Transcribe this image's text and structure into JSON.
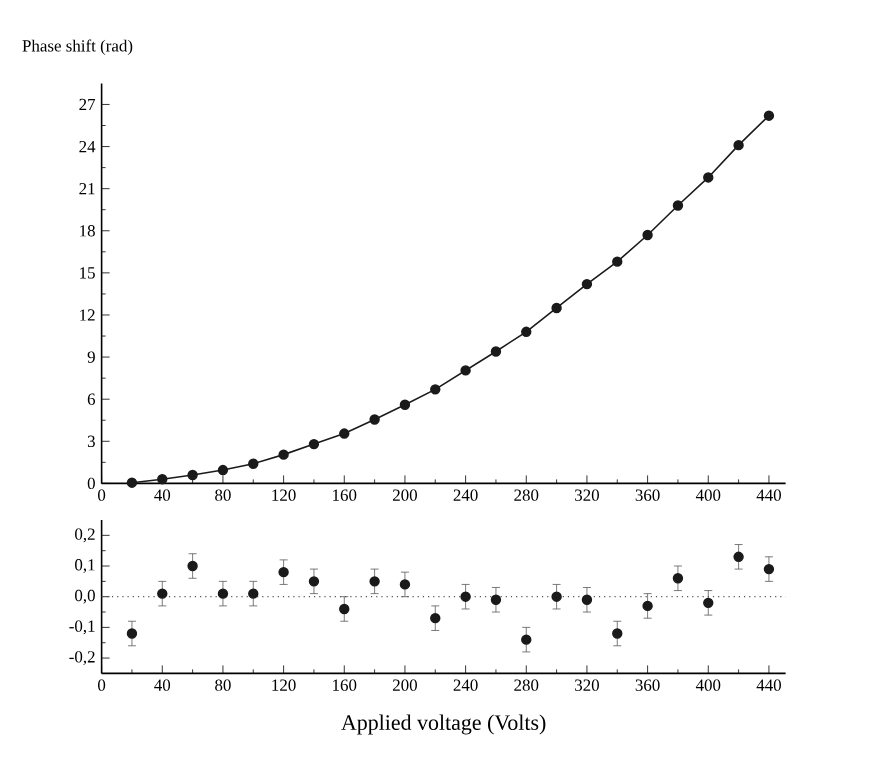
{
  "chart_data": [
    {
      "type": "line",
      "ylabel": "Phase shift (rad)",
      "x": [
        20,
        40,
        60,
        80,
        100,
        120,
        140,
        160,
        180,
        200,
        220,
        240,
        260,
        280,
        300,
        320,
        340,
        360,
        380,
        400,
        420,
        440
      ],
      "values": [
        0.05,
        0.3,
        0.6,
        0.95,
        1.4,
        2.05,
        2.8,
        3.55,
        4.55,
        5.6,
        6.7,
        8.05,
        9.4,
        10.8,
        12.5,
        14.2,
        15.8,
        17.7,
        19.8,
        21.8,
        24.1,
        26.2
      ],
      "color": "#1a1a1a",
      "marker": "circle",
      "line_style": "solid",
      "grid": false,
      "xlim": [
        0,
        451
      ],
      "ylim": [
        0,
        28.5
      ],
      "xticks": [
        0,
        40,
        80,
        120,
        160,
        200,
        240,
        280,
        320,
        360,
        400,
        440
      ],
      "yticks": [
        0,
        3,
        6,
        9,
        12,
        15,
        18,
        21,
        24,
        27
      ]
    },
    {
      "type": "scatter",
      "xlabel": "Applied voltage (Volts)",
      "x": [
        20,
        40,
        60,
        80,
        100,
        120,
        140,
        160,
        180,
        200,
        220,
        240,
        260,
        280,
        300,
        320,
        340,
        360,
        380,
        400,
        420,
        440
      ],
      "values": [
        -0.12,
        0.01,
        0.1,
        0.01,
        0.01,
        0.08,
        0.05,
        -0.04,
        0.05,
        0.04,
        -0.07,
        0.0,
        -0.01,
        -0.14,
        0.0,
        -0.01,
        -0.12,
        -0.03,
        0.06,
        -0.02,
        0.13,
        0.09
      ],
      "errors": [
        0.04,
        0.04,
        0.04,
        0.04,
        0.04,
        0.04,
        0.04,
        0.04,
        0.04,
        0.04,
        0.04,
        0.04,
        0.04,
        0.04,
        0.04,
        0.04,
        0.04,
        0.04,
        0.04,
        0.04,
        0.04,
        0.04
      ],
      "color": "#1a1a1a",
      "marker": "circle",
      "grid": false,
      "ref_lines": [
        {
          "axis": "y",
          "value": 0,
          "line_style": "dotted",
          "color": "#555555"
        }
      ],
      "xlim": [
        0,
        451
      ],
      "ylim": [
        -0.25,
        0.25
      ],
      "xticks": [
        0,
        40,
        80,
        120,
        160,
        200,
        240,
        280,
        320,
        360,
        400,
        440
      ],
      "yticks": [
        {
          "value": -0.2,
          "label": "-0,2"
        },
        {
          "value": -0.1,
          "label": "-0,1"
        },
        {
          "value": 0,
          "label": "0,0"
        },
        {
          "value": 0.1,
          "label": "0,1"
        },
        {
          "value": 0.2,
          "label": "0,2"
        }
      ]
    }
  ]
}
